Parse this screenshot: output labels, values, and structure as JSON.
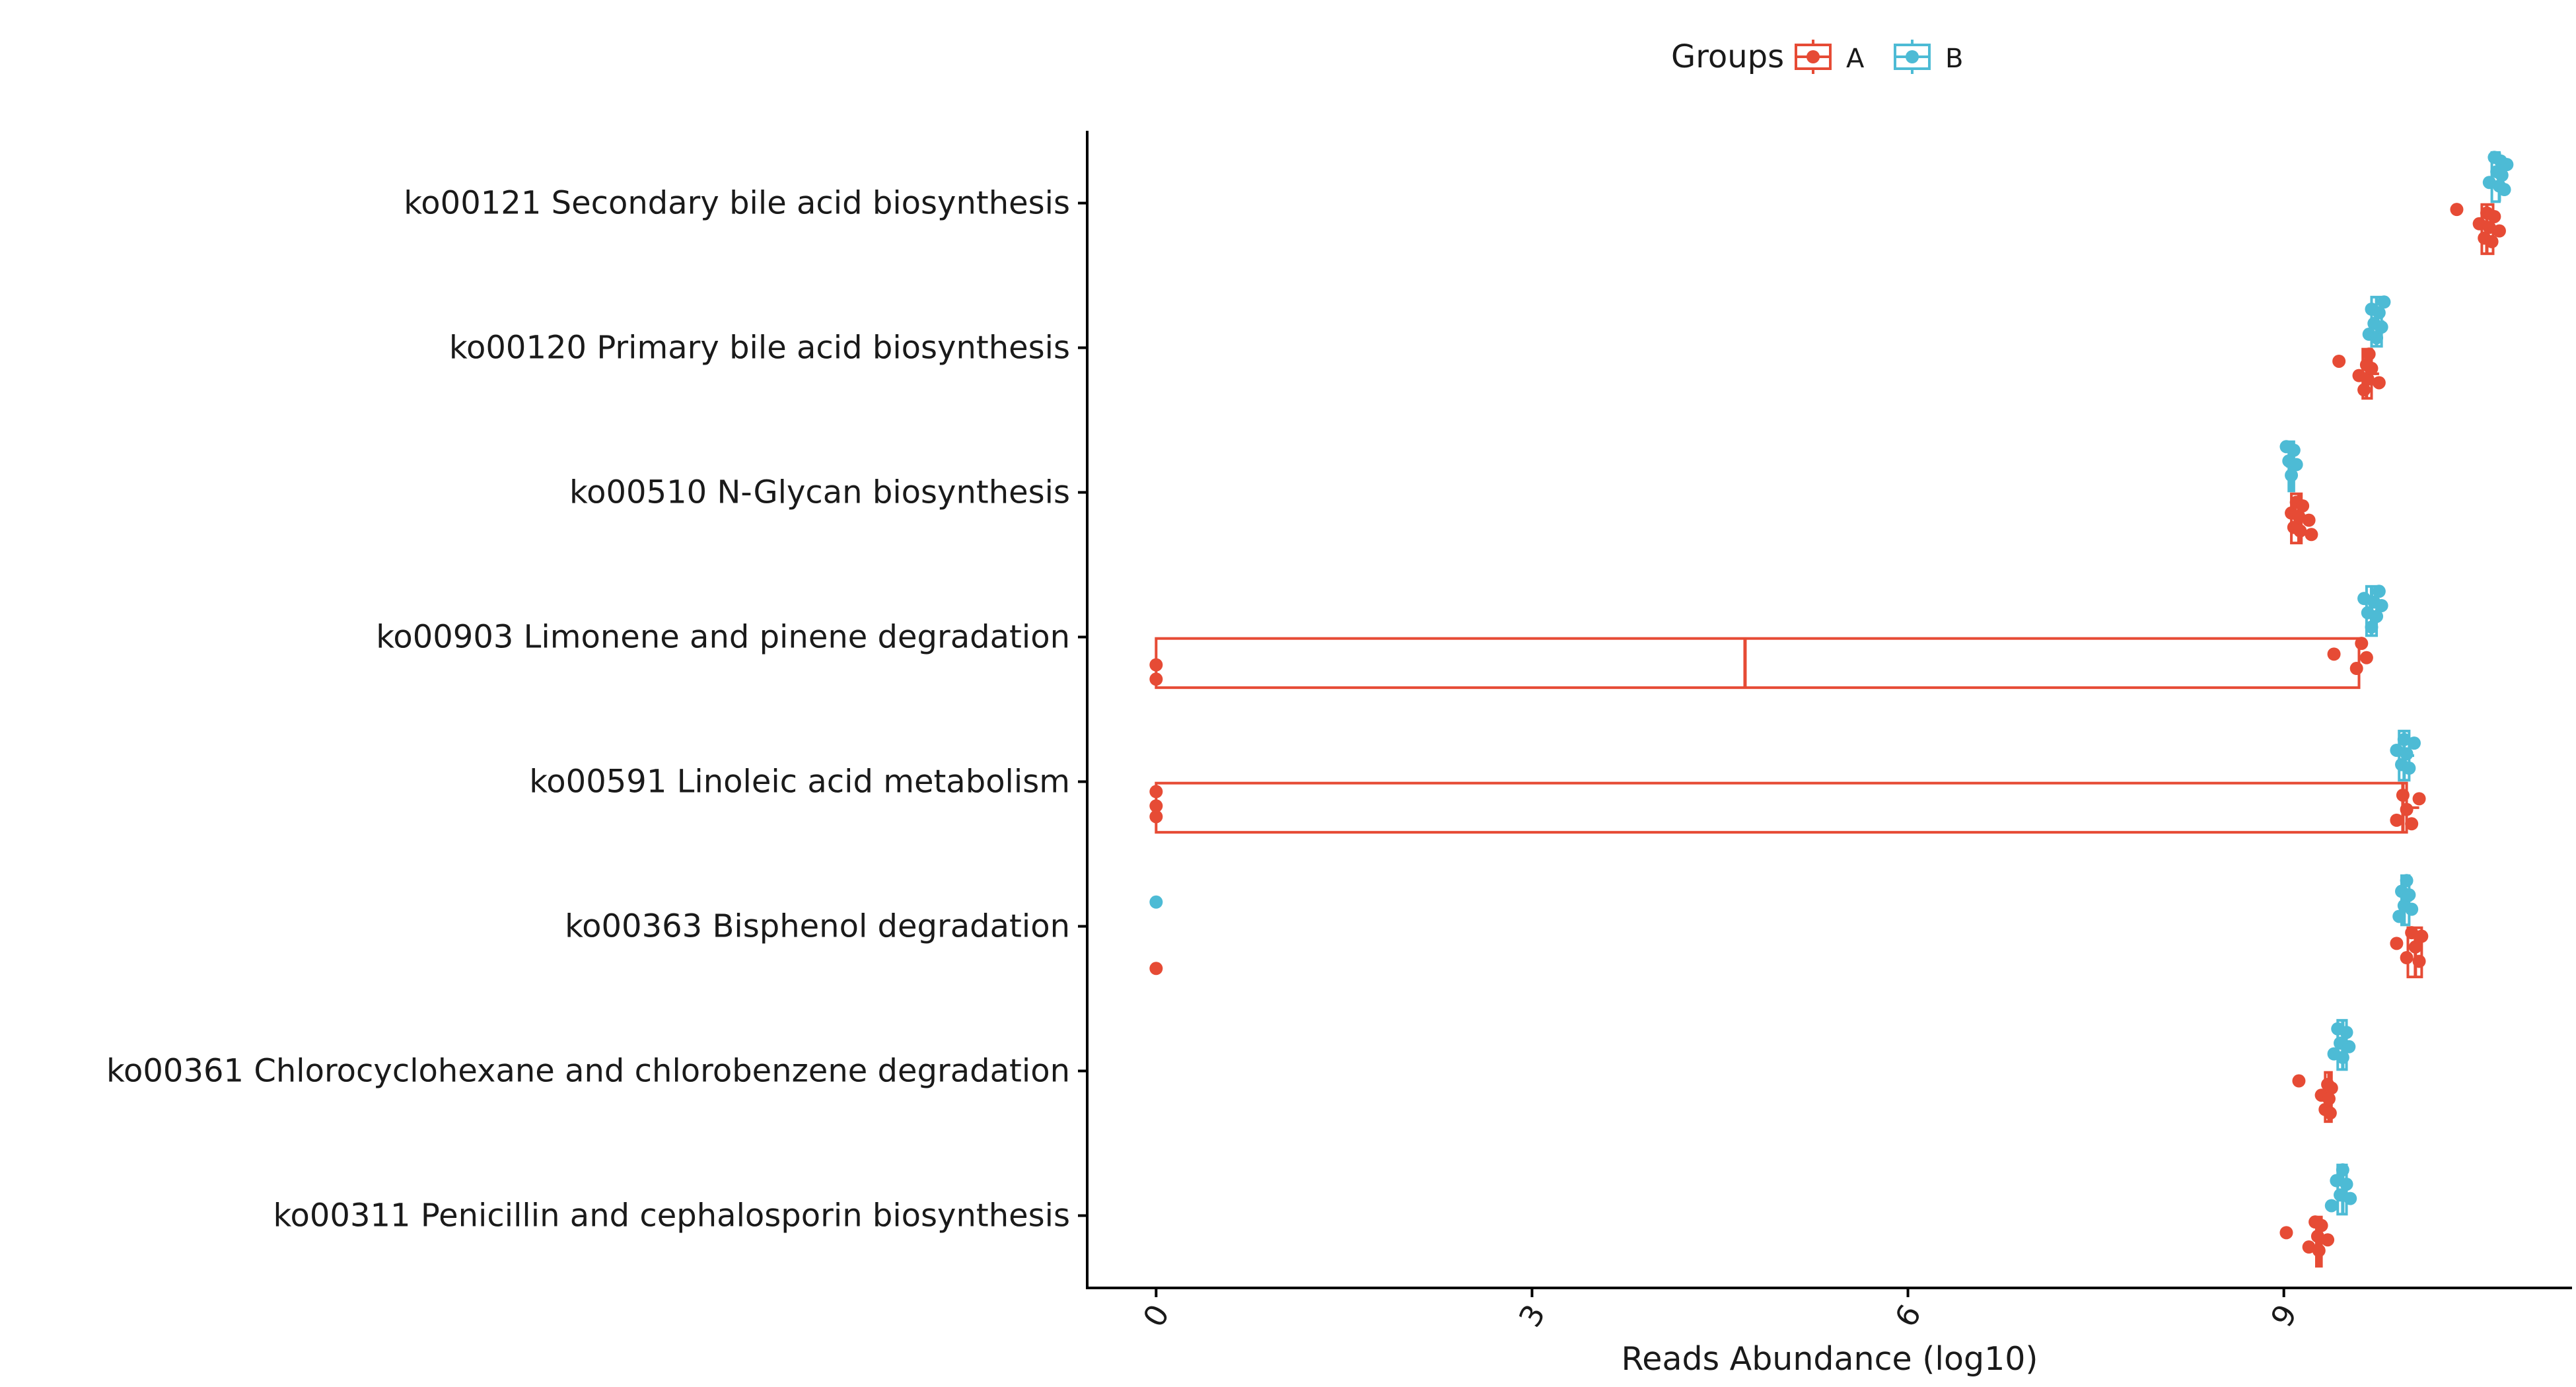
{
  "chart_data": {
    "type": "boxplot",
    "xlabel": "Reads Abundance (log10)",
    "ylabel": "",
    "xlim": [
      -0.55,
      11.3
    ],
    "x_ticks": [
      0,
      3,
      6,
      9
    ],
    "x_tick_labels": [
      "0",
      "3",
      "6",
      "9"
    ],
    "grid": false,
    "legend": {
      "title": "Groups",
      "position": "top",
      "entries": [
        {
          "name": "A",
          "color": "#E64B35"
        },
        {
          "name": "B",
          "color": "#4DBBD5"
        }
      ]
    },
    "categories": [
      "ko00121 Secondary bile acid biosynthesis",
      "ko00120 Primary bile acid biosynthesis",
      "ko00510 N-Glycan biosynthesis",
      "ko00903 Limonene and pinene degradation",
      "ko00591 Linoleic acid metabolism",
      "ko00363 Bisphenol degradation",
      "ko00361 Chlorocyclohexane and chlorobenzene degradation",
      "ko00311 Penicillin and cephalosporin biosynthesis"
    ],
    "series": [
      {
        "name": "A",
        "color": "#E64B35",
        "boxes": [
          {
            "min": 10.58,
            "q1": 10.58,
            "median": 10.62,
            "q3": 10.67,
            "max": 10.72,
            "points": [
              10.38,
              10.56,
              10.6,
              10.62,
              10.64,
              10.66,
              10.68,
              10.72
            ]
          },
          {
            "min": 9.63,
            "q1": 9.63,
            "median": 9.66,
            "q3": 9.7,
            "max": 9.76,
            "points": [
              9.44,
              9.6,
              9.64,
              9.66,
              9.67,
              9.68,
              9.7,
              9.76
            ]
          },
          {
            "min": 9.06,
            "q1": 9.06,
            "median": 9.12,
            "q3": 9.14,
            "max": 9.22,
            "points": [
              9.06,
              9.08,
              9.1,
              9.12,
              9.13,
              9.15,
              9.2,
              9.22
            ]
          },
          {
            "min": 0,
            "q1": 0,
            "median": 4.7,
            "q3": 9.6,
            "max": 9.6,
            "points": [
              0,
              0,
              9.4,
              9.58,
              9.62,
              9.66
            ]
          },
          {
            "min": 0,
            "q1": 0,
            "median": 9.95,
            "q3": 9.98,
            "max": 10.08,
            "points": [
              0,
              0,
              0,
              9.9,
              9.95,
              9.98,
              10.02,
              10.08
            ]
          },
          {
            "min": 9.99,
            "q1": 9.99,
            "median": 10.05,
            "q3": 10.1,
            "max": 10.1,
            "points": [
              0,
              9.9,
              9.98,
              10.02,
              10.05,
              10.08,
              10.1
            ]
          },
          {
            "min": 9.3,
            "q1": 9.33,
            "median": 9.36,
            "q3": 9.38,
            "max": 9.38,
            "points": [
              9.12,
              9.3,
              9.33,
              9.35,
              9.36,
              9.37,
              9.38
            ]
          },
          {
            "min": 9.26,
            "q1": 9.26,
            "median": 9.28,
            "q3": 9.3,
            "max": 9.35,
            "points": [
              9.02,
              9.2,
              9.25,
              9.27,
              9.28,
              9.3,
              9.35
            ]
          }
        ]
      },
      {
        "name": "B",
        "color": "#4DBBD5",
        "boxes": [
          {
            "min": 10.66,
            "q1": 10.66,
            "median": 10.72,
            "q3": 10.72,
            "max": 10.78,
            "points": [
              10.64,
              10.68,
              10.7,
              10.72,
              10.73,
              10.74,
              10.76,
              10.78
            ]
          },
          {
            "min": 9.7,
            "q1": 9.7,
            "median": 9.74,
            "q3": 9.78,
            "max": 9.8,
            "points": [
              9.68,
              9.7,
              9.72,
              9.74,
              9.76,
              9.78,
              9.8
            ]
          },
          {
            "min": 9.02,
            "q1": 9.04,
            "median": 9.06,
            "q3": 9.08,
            "max": 9.1,
            "points": [
              9.02,
              9.04,
              9.06,
              9.08,
              9.1
            ]
          },
          {
            "min": 9.66,
            "q1": 9.66,
            "median": 9.7,
            "q3": 9.74,
            "max": 9.78,
            "points": [
              9.64,
              9.67,
              9.7,
              9.72,
              9.74,
              9.76,
              9.78
            ]
          },
          {
            "min": 9.92,
            "q1": 9.92,
            "median": 9.96,
            "q3": 10.0,
            "max": 10.04,
            "points": [
              9.9,
              9.94,
              9.96,
              9.98,
              10.0,
              10.04
            ]
          },
          {
            "min": 9.94,
            "q1": 9.94,
            "median": 9.96,
            "q3": 10.0,
            "max": 10.02,
            "points": [
              0,
              9.92,
              9.94,
              9.96,
              9.98,
              10.0,
              10.02
            ]
          },
          {
            "min": 9.43,
            "q1": 9.43,
            "median": 9.47,
            "q3": 9.5,
            "max": 9.5,
            "points": [
              9.4,
              9.43,
              9.45,
              9.47,
              9.5,
              9.52
            ]
          },
          {
            "min": 9.43,
            "q1": 9.43,
            "median": 9.47,
            "q3": 9.5,
            "max": 9.5,
            "points": [
              9.38,
              9.42,
              9.45,
              9.47,
              9.5,
              9.53
            ]
          }
        ]
      }
    ]
  }
}
